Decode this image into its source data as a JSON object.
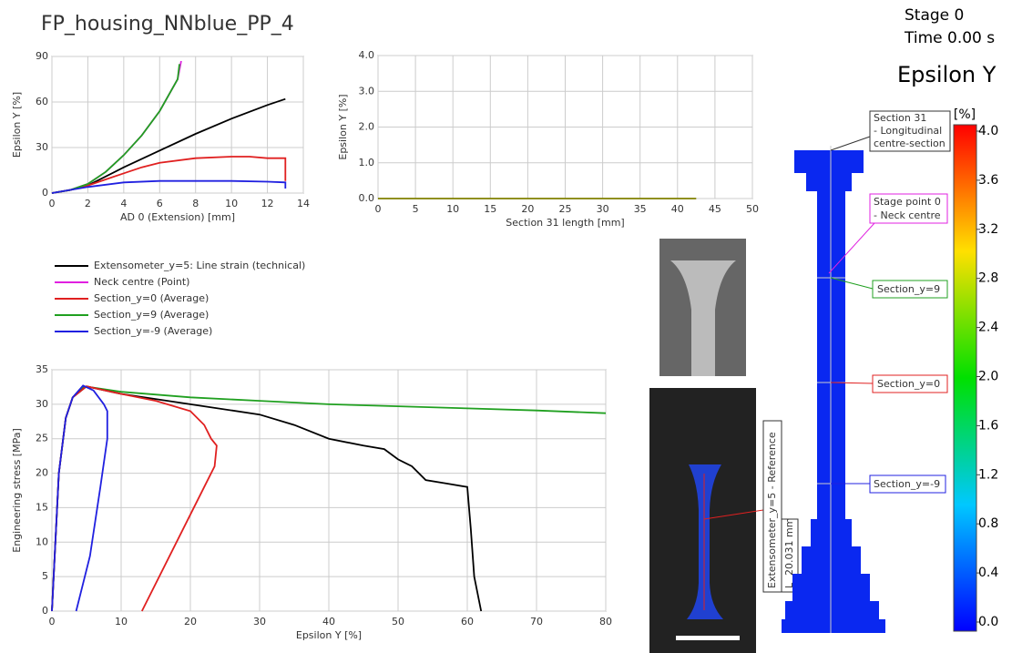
{
  "header": {
    "title": "FP_housing_NNblue_PP_4",
    "stage": "Stage 0",
    "time": "Time  0.00 s",
    "quantity": "Epsilon Y"
  },
  "chart_data": [
    {
      "type": "line",
      "xlabel": "AD 0 (Extension) [mm]",
      "ylabel": "Epsilon Y [%]",
      "xlim": [
        0,
        14
      ],
      "xticks": [
        0,
        2,
        4,
        6,
        8,
        10,
        12,
        14
      ],
      "ylim": [
        0,
        90
      ],
      "yticks": [
        0,
        30,
        60,
        90
      ],
      "series": [
        {
          "name": "Extensometer_y=5: Line strain (technical)",
          "color": "#000000",
          "x": [
            0,
            1,
            2,
            4,
            6,
            8,
            10,
            12,
            13
          ],
          "values": [
            0,
            2,
            5,
            17,
            28,
            39,
            49,
            58,
            62
          ]
        },
        {
          "name": "Neck centre (Point)",
          "color": "#e020e0",
          "x": [
            0,
            1,
            2,
            3,
            4,
            5,
            6,
            7,
            7.2
          ],
          "values": [
            0,
            2,
            6,
            14,
            25,
            38,
            54,
            75,
            87
          ]
        },
        {
          "name": "Section_y=0 (Average)",
          "color": "#e02020",
          "x": [
            0,
            1,
            2,
            3,
            4,
            5,
            6,
            8,
            10,
            11,
            12,
            13,
            13
          ],
          "values": [
            0,
            2,
            5,
            9,
            13,
            17,
            20,
            23,
            24,
            24,
            23,
            23,
            8
          ]
        },
        {
          "name": "Section_y=9 (Average)",
          "color": "#20a020",
          "x": [
            0,
            1,
            2,
            3,
            4,
            5,
            6,
            7,
            7.1
          ],
          "values": [
            0,
            2,
            6,
            14,
            25,
            38,
            54,
            75,
            85
          ]
        },
        {
          "name": "Section_y=-9 (Average)",
          "color": "#2020e0",
          "x": [
            0,
            2,
            4,
            6,
            8,
            10,
            12,
            13,
            13
          ],
          "values": [
            0,
            4,
            7,
            8,
            8,
            8,
            7.5,
            7,
            3
          ]
        }
      ]
    },
    {
      "type": "line",
      "xlabel": "Section 31 length [mm]",
      "ylabel": "Epsilon Y [%]",
      "xlim": [
        0,
        50
      ],
      "xticks": [
        0,
        5,
        10,
        15,
        20,
        25,
        30,
        35,
        40,
        45,
        50
      ],
      "ylim": [
        0,
        4
      ],
      "yticks": [
        {
          "value": 0,
          "label": "0.0"
        },
        {
          "value": 1,
          "label": "1.0"
        },
        {
          "value": 2,
          "label": "2.0"
        },
        {
          "value": 3,
          "label": "3.0"
        },
        {
          "value": 4,
          "label": "4.0"
        }
      ],
      "series": [
        {
          "color": "#808000",
          "x": [
            0,
            42.5
          ],
          "values": [
            0,
            0
          ]
        }
      ]
    },
    {
      "type": "line",
      "xlabel": "Epsilon Y [%]",
      "ylabel": "Engineering stress [MPa]",
      "xlim": [
        0,
        80
      ],
      "xticks": [
        0,
        10,
        20,
        30,
        40,
        50,
        60,
        70,
        80
      ],
      "ylim": [
        0,
        35
      ],
      "yticks": [
        0,
        5,
        10,
        15,
        20,
        25,
        30,
        35
      ],
      "series": [
        {
          "color": "#20a020",
          "x": [
            0,
            1,
            2,
            3,
            4.5,
            6,
            10,
            20,
            30,
            40,
            50,
            60,
            70,
            80
          ],
          "values": [
            0,
            20,
            28,
            31,
            32.5,
            32.4,
            31.8,
            31,
            30.5,
            30,
            29.7,
            29.4,
            29.1,
            28.7
          ]
        },
        {
          "color": "#000000",
          "x": [
            0,
            1,
            2,
            3,
            5,
            10,
            20,
            30,
            35,
            40,
            45,
            48,
            50,
            52,
            54,
            57,
            60,
            60.5,
            61,
            62
          ],
          "values": [
            0,
            20,
            28,
            31,
            32.6,
            31.5,
            30,
            28.5,
            27,
            25,
            24,
            23.5,
            22,
            21,
            19,
            18.5,
            18,
            12,
            5,
            0
          ]
        },
        {
          "color": "#e02020",
          "x": [
            0,
            1,
            2,
            3,
            5,
            10,
            15,
            20,
            22,
            23,
            23.8,
            23.5,
            22,
            13
          ],
          "values": [
            0,
            20,
            28,
            31,
            32.6,
            31.5,
            30.5,
            29,
            27,
            25,
            24,
            21,
            18,
            0
          ]
        },
        {
          "color": "#2020e0",
          "x": [
            0,
            1,
            2,
            3,
            4.5,
            6,
            7.5,
            8,
            8,
            7,
            5.5,
            3.5
          ],
          "values": [
            0,
            20,
            28,
            31,
            32.7,
            32,
            30,
            29,
            25,
            18,
            8,
            0
          ]
        }
      ]
    }
  ],
  "annotations": {
    "section31": [
      "Section 31",
      "- Longitudinal",
      "centre-section"
    ],
    "stage_point": [
      "Stage point 0",
      "- Neck centre"
    ],
    "section_y9": "Section_y=9",
    "section_y0": "Section_y=0",
    "section_ym9": "Section_y=-9",
    "extensometer": "Extensometer_y=5 - Reference",
    "length_key": "L",
    "length_value": "20.031 mm"
  },
  "colorbar": {
    "unit": "[%]",
    "range": [
      0,
      4
    ],
    "ticks": [
      {
        "value": 4,
        "label": "4.0"
      },
      {
        "value": 3.6,
        "label": "3.6"
      },
      {
        "value": 3.2,
        "label": "3.2"
      },
      {
        "value": 2.8,
        "label": "2.8"
      },
      {
        "value": 2.4,
        "label": "2.4"
      },
      {
        "value": 2,
        "label": "2.0"
      },
      {
        "value": 1.6,
        "label": "1.6"
      },
      {
        "value": 1.2,
        "label": "1.2"
      },
      {
        "value": 0.8,
        "label": "0.8"
      },
      {
        "value": 0.4,
        "label": "0.4"
      },
      {
        "value": 0,
        "label": "0.0"
      }
    ]
  }
}
